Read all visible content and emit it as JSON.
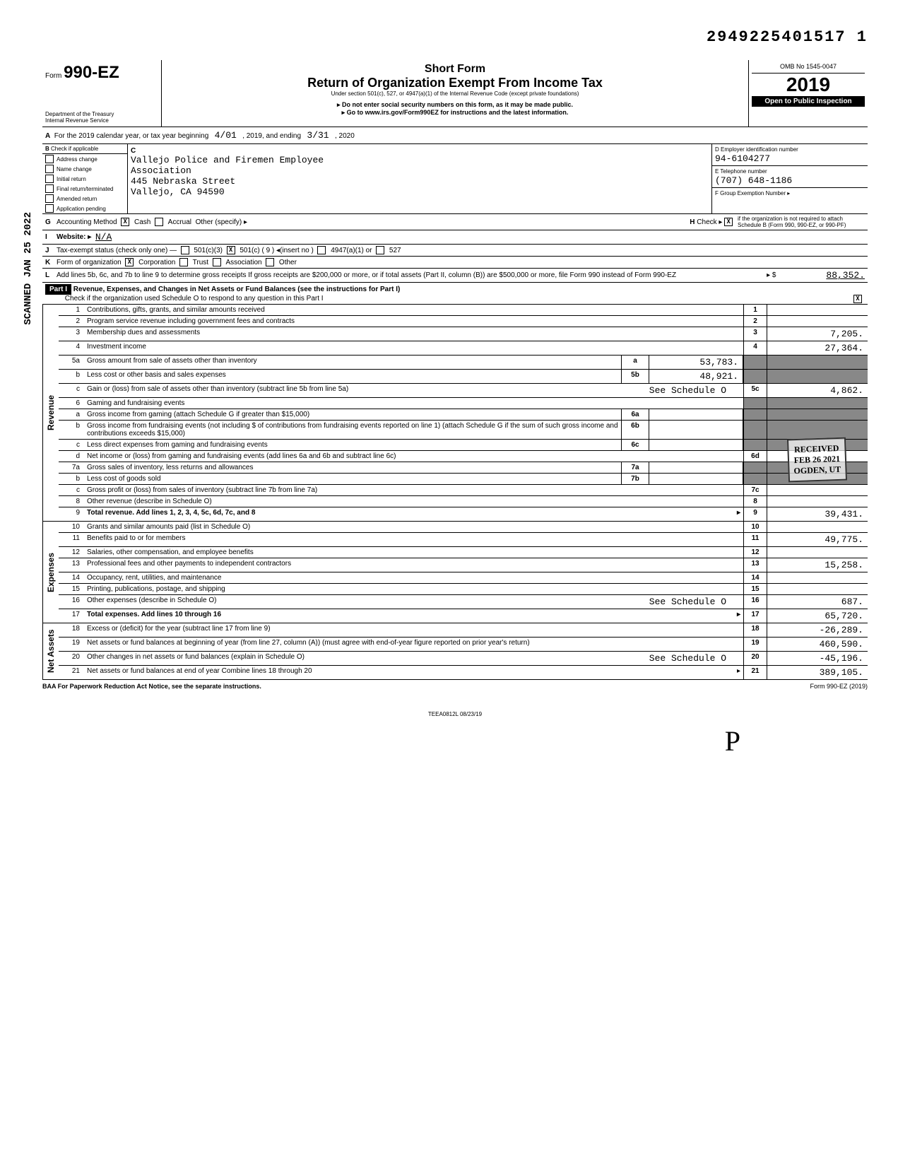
{
  "top_number": "2949225401517 1",
  "header": {
    "form_word": "Form",
    "form_no": "990-EZ",
    "short_form": "Short Form",
    "title": "Return of Organization Exempt From Income Tax",
    "sub1": "Under section 501(c), 527, or 4947(a)(1) of the Internal Revenue Code (except private foundations)",
    "sub2": "▸ Do not enter social security numbers on this form, as it may be made public.",
    "sub3": "▸ Go to www.irs.gov/Form990EZ for instructions and the latest information.",
    "dept": "Department of the Treasury\nInternal Revenue Service",
    "omb": "OMB No 1545-0047",
    "year": "2019",
    "open": "Open to Public Inspection"
  },
  "lineA": {
    "text": "For the 2019 calendar year, or tax year beginning",
    "begin": "4/01",
    "mid": ", 2019, and ending",
    "end": "3/31",
    "endyear": ", 2020"
  },
  "boxB": {
    "title": "Check if applicable",
    "opts": [
      "Address change",
      "Name change",
      "Initial return",
      "Final return/terminated",
      "Amended return",
      "Application pending"
    ]
  },
  "boxC": {
    "name1": "Vallejo Police and Firemen Employee",
    "name2": "Association",
    "addr1": "445 Nebraska Street",
    "addr2": "Vallejo, CA 94590"
  },
  "boxD": {
    "label": "D  Employer identification number",
    "val": "94-6104277"
  },
  "boxE": {
    "label": "E  Telephone number",
    "val": "(707) 648-1186"
  },
  "boxF": {
    "label": "F  Group Exemption Number  ▸"
  },
  "lineG": {
    "label": "Accounting Method",
    "cash": "Cash",
    "accrual": "Accrual",
    "other": "Other (specify) ▸"
  },
  "lineH": {
    "text": "Check ▸",
    "desc": "if the organization is not required to attach Schedule B (Form 990, 990-EZ, or 990-PF)"
  },
  "lineI": {
    "label": "Website: ▸",
    "val": "N/A"
  },
  "lineJ": {
    "label": "Tax-exempt status (check only one) —",
    "c3": "501(c)(3)",
    "c": "501(c) (  9  ) ◂(insert no )",
    "a": "4947(a)(1) or",
    "527": "527"
  },
  "lineK": {
    "label": "Form of organization",
    "corp": "Corporation",
    "trust": "Trust",
    "assoc": "Association",
    "other": "Other"
  },
  "lineL": {
    "text": "Add lines 5b, 6c, and 7b to line 9 to determine gross receipts  If gross receipts are $200,000 or more, or if total assets (Part II, column (B)) are $500,000 or more, file Form 990 instead of Form 990-EZ",
    "sym": "▸ $",
    "val": "88,352."
  },
  "part1": {
    "header": "Part I",
    "title": "Revenue, Expenses, and Changes in Net Assets or Fund Balances (see the instructions for Part I)",
    "sub": "Check if the organization used Schedule O to respond to any question in this Part I"
  },
  "revenue_label": "Revenue",
  "expenses_label": "Expenses",
  "netassets_label": "Net Assets",
  "rows": {
    "r1": {
      "n": "1",
      "d": "Contributions, gifts, grants, and similar amounts received",
      "box": "1",
      "amt": ""
    },
    "r2": {
      "n": "2",
      "d": "Program service revenue including government fees and contracts",
      "box": "2",
      "amt": ""
    },
    "r3": {
      "n": "3",
      "d": "Membership dues and assessments",
      "box": "3",
      "amt": "7,205."
    },
    "r4": {
      "n": "4",
      "d": "Investment income",
      "box": "4",
      "amt": "27,364."
    },
    "r5a": {
      "n": "5a",
      "d": "Gross amount from sale of assets other than inventory",
      "mb": "a",
      "mv": "53,783."
    },
    "r5b": {
      "n": "b",
      "d": "Less  cost or other basis and sales expenses",
      "mb": "5b",
      "mv": "48,921."
    },
    "r5c": {
      "n": "c",
      "d": "Gain or (loss) from sale of assets other than inventory (subtract line 5b from line 5a)",
      "extra": "See Schedule O",
      "box": "5c",
      "amt": "4,862."
    },
    "r6": {
      "n": "6",
      "d": "Gaming and fundraising events"
    },
    "r6a": {
      "n": "a",
      "d": "Gross income from gaming (attach Schedule G if greater than $15,000)",
      "mb": "6a",
      "mv": ""
    },
    "r6b": {
      "n": "b",
      "d": "Gross income from fundraising events (not including $",
      "d2": "of contributions from fundraising events reported on line 1) (attach Schedule G if the sum of such gross income and contributions exceeds $15,000)",
      "mb": "6b",
      "mv": ""
    },
    "r6c": {
      "n": "c",
      "d": "Less  direct expenses from gaming and fundraising events",
      "mb": "6c",
      "mv": ""
    },
    "r6d": {
      "n": "d",
      "d": "Net income or (loss) from gaming and fundraising events (add lines 6a and 6b and subtract line 6c)",
      "box": "6d",
      "amt": ""
    },
    "r7a": {
      "n": "7a",
      "d": "Gross sales of inventory, less returns and allowances",
      "mb": "7a",
      "mv": ""
    },
    "r7b": {
      "n": "b",
      "d": "Less  cost of goods sold",
      "mb": "7b",
      "mv": ""
    },
    "r7c": {
      "n": "c",
      "d": "Gross profit or (loss) from sales of inventory (subtract line 7b from line 7a)",
      "box": "7c",
      "amt": ""
    },
    "r8": {
      "n": "8",
      "d": "Other revenue (describe in Schedule O)",
      "box": "8",
      "amt": ""
    },
    "r9": {
      "n": "9",
      "d": "Total revenue. Add lines 1, 2, 3, 4, 5c, 6d, 7c, and 8",
      "box": "9",
      "amt": "39,431.",
      "arrow": "▸"
    },
    "r10": {
      "n": "10",
      "d": "Grants and similar amounts paid (list in Schedule O)",
      "box": "10",
      "amt": ""
    },
    "r11": {
      "n": "11",
      "d": "Benefits paid to or for members",
      "box": "11",
      "amt": "49,775."
    },
    "r12": {
      "n": "12",
      "d": "Salaries, other compensation, and employee benefits",
      "box": "12",
      "amt": ""
    },
    "r13": {
      "n": "13",
      "d": "Professional fees and other payments to independent contractors",
      "box": "13",
      "amt": "15,258."
    },
    "r14": {
      "n": "14",
      "d": "Occupancy, rent, utilities, and maintenance",
      "box": "14",
      "amt": ""
    },
    "r15": {
      "n": "15",
      "d": "Printing, publications, postage, and shipping",
      "box": "15",
      "amt": ""
    },
    "r16": {
      "n": "16",
      "d": "Other expenses (describe in Schedule O)",
      "extra": "See Schedule O",
      "box": "16",
      "amt": "687."
    },
    "r17": {
      "n": "17",
      "d": "Total expenses. Add lines 10 through 16",
      "box": "17",
      "amt": "65,720.",
      "arrow": "▸"
    },
    "r18": {
      "n": "18",
      "d": "Excess or (deficit) for the year (subtract line 17 from line 9)",
      "box": "18",
      "amt": "-26,289."
    },
    "r19": {
      "n": "19",
      "d": "Net assets or fund balances at beginning of year (from line 27, column (A)) (must agree with end-of-year figure reported on prior year's return)",
      "box": "19",
      "amt": "460,590."
    },
    "r20": {
      "n": "20",
      "d": "Other changes in net assets or fund balances (explain in Schedule O)",
      "extra": "See Schedule O",
      "box": "20",
      "amt": "-45,196."
    },
    "r21": {
      "n": "21",
      "d": "Net assets or fund balances at end of year  Combine lines 18 through 20",
      "box": "21",
      "amt": "389,105.",
      "arrow": "▸"
    }
  },
  "footer": {
    "left": "BAA  For Paperwork Reduction Act Notice, see the separate instructions.",
    "right": "Form 990-EZ (2019)",
    "teea": "TEEA0812L  08/23/19"
  },
  "stamp": {
    "l1": "RECEIVED",
    "l2": "FEB 26 2021",
    "l3": "OGDEN, UT"
  },
  "scanned": "SCANNED JAN 25 2022"
}
